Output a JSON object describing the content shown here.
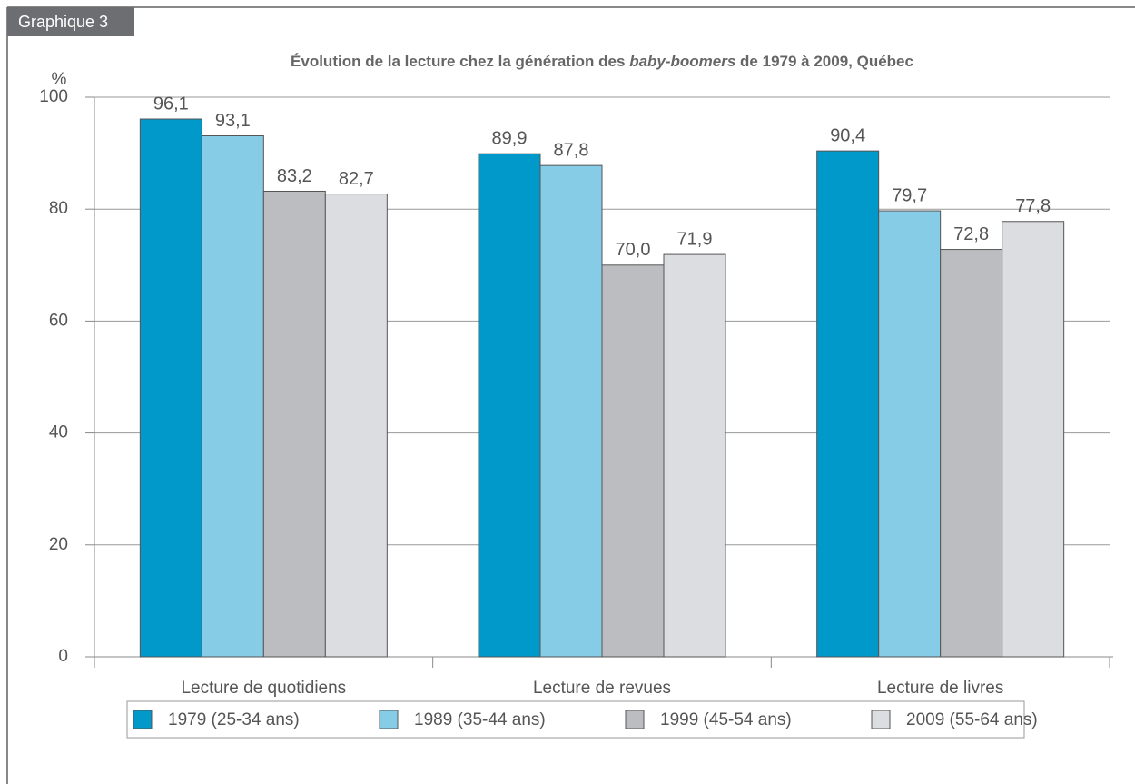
{
  "tab_label": "Graphique 3",
  "chart_data": {
    "type": "bar",
    "title": [
      "Évolution de la lecture chez la génération des ",
      "baby-boomers",
      " de 1979 à 2009, Québec"
    ],
    "ylabel": "%",
    "categories": [
      "Lecture de quotidiens",
      "Lecture de revues",
      "Lecture de livres"
    ],
    "series": [
      {
        "name": "1979 (25-34 ans)",
        "color": "#0099c9",
        "values": [
          96.1,
          89.9,
          90.4
        ],
        "value_labels": [
          "96,1",
          "89,9",
          "90,4"
        ]
      },
      {
        "name": "1989 (35-44 ans)",
        "color": "#87cce6",
        "values": [
          93.1,
          87.8,
          79.7
        ],
        "value_labels": [
          "93,1",
          "87,8",
          "79,7"
        ]
      },
      {
        "name": "1999 (45-54 ans)",
        "color": "#bcbdc0",
        "values": [
          83.2,
          70.0,
          72.8
        ],
        "value_labels": [
          "83,2",
          "70,0",
          "72,8"
        ]
      },
      {
        "name": "2009 (55-64 ans)",
        "color": "#dcdde0",
        "values": [
          82.7,
          71.9,
          77.8
        ],
        "value_labels": [
          "82,7",
          "71,9",
          "77,8"
        ]
      }
    ],
    "ylim": [
      0,
      100
    ],
    "yticks": [
      0,
      20,
      40,
      60,
      80,
      100
    ],
    "grid": true
  }
}
